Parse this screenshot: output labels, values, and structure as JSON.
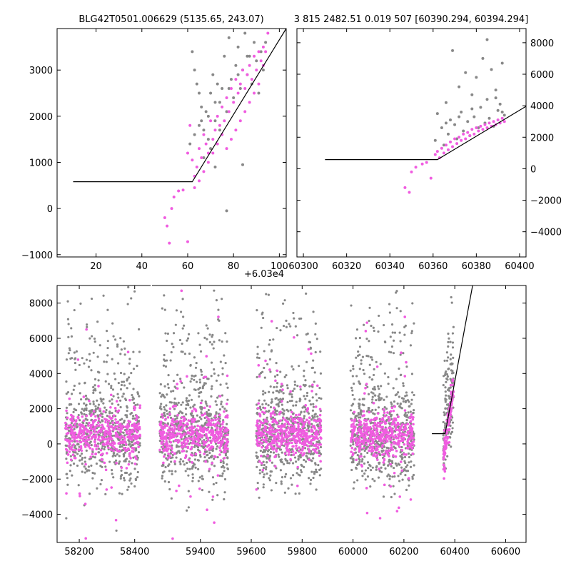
{
  "chart_data": [
    {
      "panel": "top-left",
      "type": "scatter",
      "title": "BLG42T0501.006629 (5135.65, 243.07)",
      "x_offset_label": "+6.03e4",
      "xlim": [
        3,
        103
      ],
      "ylim": [
        -1050,
        3900
      ],
      "xticks": [
        20,
        40,
        60,
        80,
        100
      ],
      "yticks": [
        -1000,
        0,
        1000,
        2000,
        3000
      ],
      "series": [
        {
          "color": "#888888",
          "points": [
            [
              62,
              3400
            ],
            [
              63,
              3000
            ],
            [
              64,
              2700
            ],
            [
              65,
              2500
            ],
            [
              66,
              2200
            ],
            [
              66,
              1900
            ],
            [
              67,
              1700
            ],
            [
              68,
              2100
            ],
            [
              69,
              1500
            ],
            [
              70,
              1300
            ],
            [
              70,
              2500
            ],
            [
              71,
              2900
            ],
            [
              72,
              1900
            ],
            [
              72,
              2300
            ],
            [
              73,
              2700
            ],
            [
              74,
              1700
            ],
            [
              75,
              2600
            ],
            [
              76,
              3300
            ],
            [
              77,
              2100
            ],
            [
              78,
              3700
            ],
            [
              79,
              2800
            ],
            [
              80,
              2400
            ],
            [
              81,
              3100
            ],
            [
              82,
              3500
            ],
            [
              83,
              2600
            ],
            [
              84,
              3000
            ],
            [
              85,
              3800
            ],
            [
              86,
              2900
            ],
            [
              87,
              3300
            ],
            [
              88,
              2700
            ],
            [
              89,
              3600
            ],
            [
              90,
              3200
            ],
            [
              91,
              2500
            ],
            [
              92,
              3400
            ],
            [
              93,
              3000
            ],
            [
              94,
              3600
            ],
            [
              86,
              3300
            ],
            [
              82,
              2900
            ],
            [
              78,
              2600
            ],
            [
              74,
              2300
            ],
            [
              69,
              2000
            ],
            [
              65,
              1800
            ],
            [
              63,
              1600
            ],
            [
              61,
              1400
            ],
            [
              67,
              1100
            ],
            [
              72,
              900
            ],
            [
              77,
              -50
            ],
            [
              84,
              950
            ]
          ]
        },
        {
          "color": "#f05ce0",
          "points": [
            [
              50,
              -200
            ],
            [
              51,
              -380
            ],
            [
              52,
              -750
            ],
            [
              53,
              0
            ],
            [
              54,
              250
            ],
            [
              56,
              380
            ],
            [
              58,
              400
            ],
            [
              60,
              -720
            ],
            [
              60,
              1200
            ],
            [
              61,
              1800
            ],
            [
              62,
              1050
            ],
            [
              63,
              700
            ],
            [
              64,
              900
            ],
            [
              65,
              1300
            ],
            [
              66,
              1100
            ],
            [
              67,
              1600
            ],
            [
              68,
              1400
            ],
            [
              69,
              1200
            ],
            [
              70,
              1900
            ],
            [
              71,
              1500
            ],
            [
              72,
              1700
            ],
            [
              73,
              2000
            ],
            [
              74,
              1800
            ],
            [
              75,
              2200
            ],
            [
              76,
              1900
            ],
            [
              77,
              2400
            ],
            [
              78,
              2100
            ],
            [
              79,
              2600
            ],
            [
              80,
              2300
            ],
            [
              81,
              2800
            ],
            [
              82,
              2500
            ],
            [
              83,
              2700
            ],
            [
              84,
              3000
            ],
            [
              85,
              2600
            ],
            [
              86,
              2900
            ],
            [
              87,
              3100
            ],
            [
              88,
              2800
            ],
            [
              89,
              3300
            ],
            [
              90,
              3000
            ],
            [
              91,
              3400
            ],
            [
              92,
              3200
            ],
            [
              93,
              3500
            ],
            [
              94,
              3400
            ],
            [
              95,
              3800
            ],
            [
              93,
              3100
            ],
            [
              91,
              2700
            ],
            [
              89,
              2500
            ],
            [
              87,
              2300
            ],
            [
              85,
              2100
            ],
            [
              83,
              1900
            ],
            [
              81,
              1700
            ],
            [
              79,
              1500
            ],
            [
              77,
              1300
            ],
            [
              75,
              1600
            ],
            [
              73,
              1400
            ],
            [
              71,
              1200
            ],
            [
              69,
              1000
            ],
            [
              67,
              800
            ],
            [
              65,
              600
            ],
            [
              63,
              450
            ]
          ]
        }
      ],
      "model_line": [
        [
          10,
          580
        ],
        [
          62,
          580
        ],
        [
          103,
          3900
        ]
      ]
    },
    {
      "panel": "top-right",
      "type": "scatter",
      "title": "3 815 2482.51 0.019 507 [60390.294, 60394.294]",
      "xlim": [
        60297,
        60403
      ],
      "ylim": [
        -5600,
        8900
      ],
      "xticks": [
        60300,
        60320,
        60340,
        60360,
        60380,
        60400
      ],
      "yticks": [
        -4000,
        -2000,
        0,
        2000,
        4000,
        6000,
        8000
      ],
      "series": [
        {
          "color": "#888888",
          "points": [
            [
              60361,
              1800
            ],
            [
              60362,
              3500
            ],
            [
              60364,
              2600
            ],
            [
              60365,
              1500
            ],
            [
              60366,
              4200
            ],
            [
              60367,
              2200
            ],
            [
              60368,
              3100
            ],
            [
              60369,
              7500
            ],
            [
              60370,
              2800
            ],
            [
              60371,
              1900
            ],
            [
              60372,
              5200
            ],
            [
              60373,
              3600
            ],
            [
              60374,
              2400
            ],
            [
              60375,
              6100
            ],
            [
              60376,
              3000
            ],
            [
              60377,
              2100
            ],
            [
              60378,
              4700
            ],
            [
              60379,
              3300
            ],
            [
              60380,
              5800
            ],
            [
              60381,
              2600
            ],
            [
              60382,
              3900
            ],
            [
              60383,
              7000
            ],
            [
              60384,
              2900
            ],
            [
              60385,
              4400
            ],
            [
              60386,
              3200
            ],
            [
              60387,
              6300
            ],
            [
              60388,
              2700
            ],
            [
              60389,
              5000
            ],
            [
              60390,
              3700
            ],
            [
              60391,
              4100
            ],
            [
              60392,
              6700
            ],
            [
              60393,
              3400
            ],
            [
              60385,
              8200
            ],
            [
              60378,
              3800
            ],
            [
              60372,
              3300
            ],
            [
              60366,
              2900
            ],
            [
              60389,
              4500
            ],
            [
              60392,
              3600
            ]
          ]
        },
        {
          "color": "#f05ce0",
          "points": [
            [
              60347,
              -1200
            ],
            [
              60349,
              -1500
            ],
            [
              60350,
              -200
            ],
            [
              60352,
              100
            ],
            [
              60355,
              300
            ],
            [
              60357,
              400
            ],
            [
              60359,
              -600
            ],
            [
              60361,
              900
            ],
            [
              60362,
              1100
            ],
            [
              60363,
              700
            ],
            [
              60364,
              1300
            ],
            [
              60365,
              1000
            ],
            [
              60366,
              1500
            ],
            [
              60367,
              1200
            ],
            [
              60368,
              1700
            ],
            [
              60369,
              1400
            ],
            [
              60370,
              1900
            ],
            [
              60371,
              1600
            ],
            [
              60372,
              2000
            ],
            [
              60373,
              1800
            ],
            [
              60374,
              2200
            ],
            [
              60375,
              1900
            ],
            [
              60376,
              2300
            ],
            [
              60377,
              2100
            ],
            [
              60378,
              2500
            ],
            [
              60379,
              2200
            ],
            [
              60380,
              2600
            ],
            [
              60381,
              2400
            ],
            [
              60382,
              2700
            ],
            [
              60383,
              2500
            ],
            [
              60384,
              2800
            ],
            [
              60385,
              2600
            ],
            [
              60386,
              2900
            ],
            [
              60387,
              2700
            ],
            [
              60388,
              3000
            ],
            [
              60389,
              2800
            ],
            [
              60390,
              3100
            ],
            [
              60391,
              2900
            ],
            [
              60392,
              3200
            ],
            [
              60393,
              3000
            ]
          ]
        }
      ],
      "model_line": [
        [
          60310,
          580
        ],
        [
          60362,
          580
        ],
        [
          60403,
          3960
        ]
      ]
    },
    {
      "panel": "bottom",
      "type": "scatter",
      "xlim": [
        58120,
        60680
      ],
      "ylim": [
        -5600,
        9000
      ],
      "xticks": [
        58200,
        58400,
        59400,
        59600,
        59800,
        60000,
        60200,
        60400,
        60600
      ],
      "yticks": [
        -4000,
        -2000,
        0,
        2000,
        4000,
        6000,
        8000
      ],
      "seasons": [
        [
          58150,
          58420
        ],
        [
          59240,
          59510
        ],
        [
          59620,
          59875
        ],
        [
          59990,
          60240
        ],
        [
          60355,
          60395
        ]
      ],
      "colors": {
        "grey": "#888888",
        "magenta": "#f05ce0",
        "model": "#000000"
      },
      "model_line": [
        [
          60310,
          580
        ],
        [
          60362,
          580
        ],
        [
          60470,
          9000
        ]
      ]
    }
  ]
}
